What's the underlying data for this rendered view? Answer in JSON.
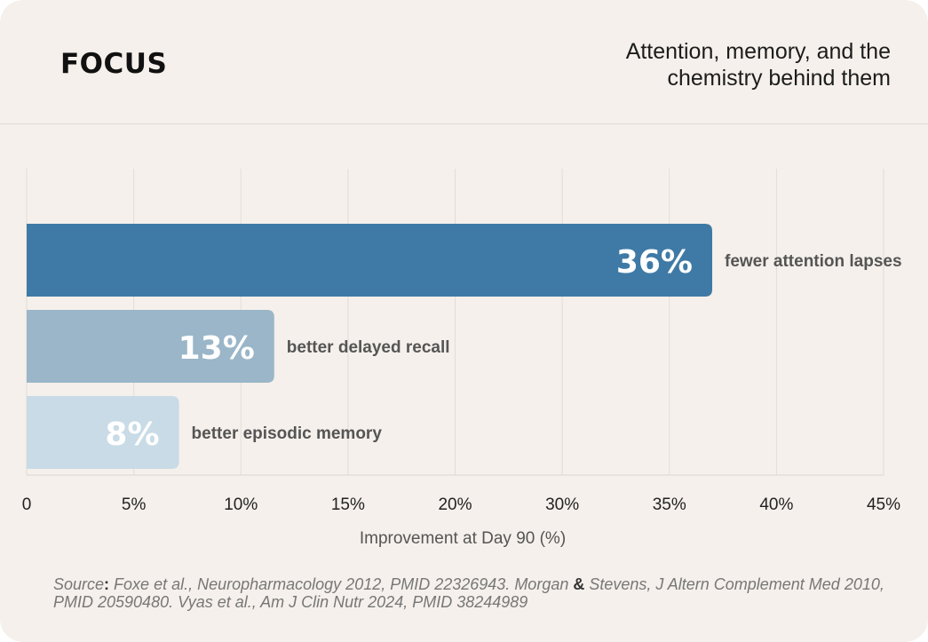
{
  "header": {
    "brand": "FOCUS",
    "subtitle_line1": "Attention, memory, and the",
    "subtitle_line2": "chemistry behind them"
  },
  "chart_data": {
    "type": "bar",
    "orientation": "horizontal",
    "categories": [
      "fewer attention lapses",
      "better delayed recall",
      "better episodic memory"
    ],
    "values": [
      36,
      13,
      8
    ],
    "value_labels": [
      "36%",
      "13%",
      "8%"
    ],
    "colors": [
      "#3f7aa6",
      "#9ab6c8",
      "#c8dbe6"
    ],
    "value_label_colors": [
      "#ffffff",
      "#ffffff",
      "#ffffff"
    ],
    "xlabel": "Improvement at Day 90 (%)",
    "xlim": [
      0,
      45
    ],
    "x_ticks": [
      0,
      5,
      10,
      15,
      20,
      30,
      35,
      40,
      45
    ],
    "x_tick_labels": [
      "0",
      "5%",
      "10%",
      "15%",
      "20%",
      "30%",
      "35%",
      "40%",
      "45%"
    ],
    "grid": "vertical"
  },
  "footer": {
    "source_label": "Source",
    "source_colon": ":",
    "source_part1": " Foxe et al., Neuropharmacology 2012, PMID 22326943. Morgan ",
    "amp": "&",
    "source_part2": " Stevens, J Altern Complement Med 2010, PMID 20590480. Vyas et al., Am J Clin Nutr 2024, PMID 38244989"
  }
}
